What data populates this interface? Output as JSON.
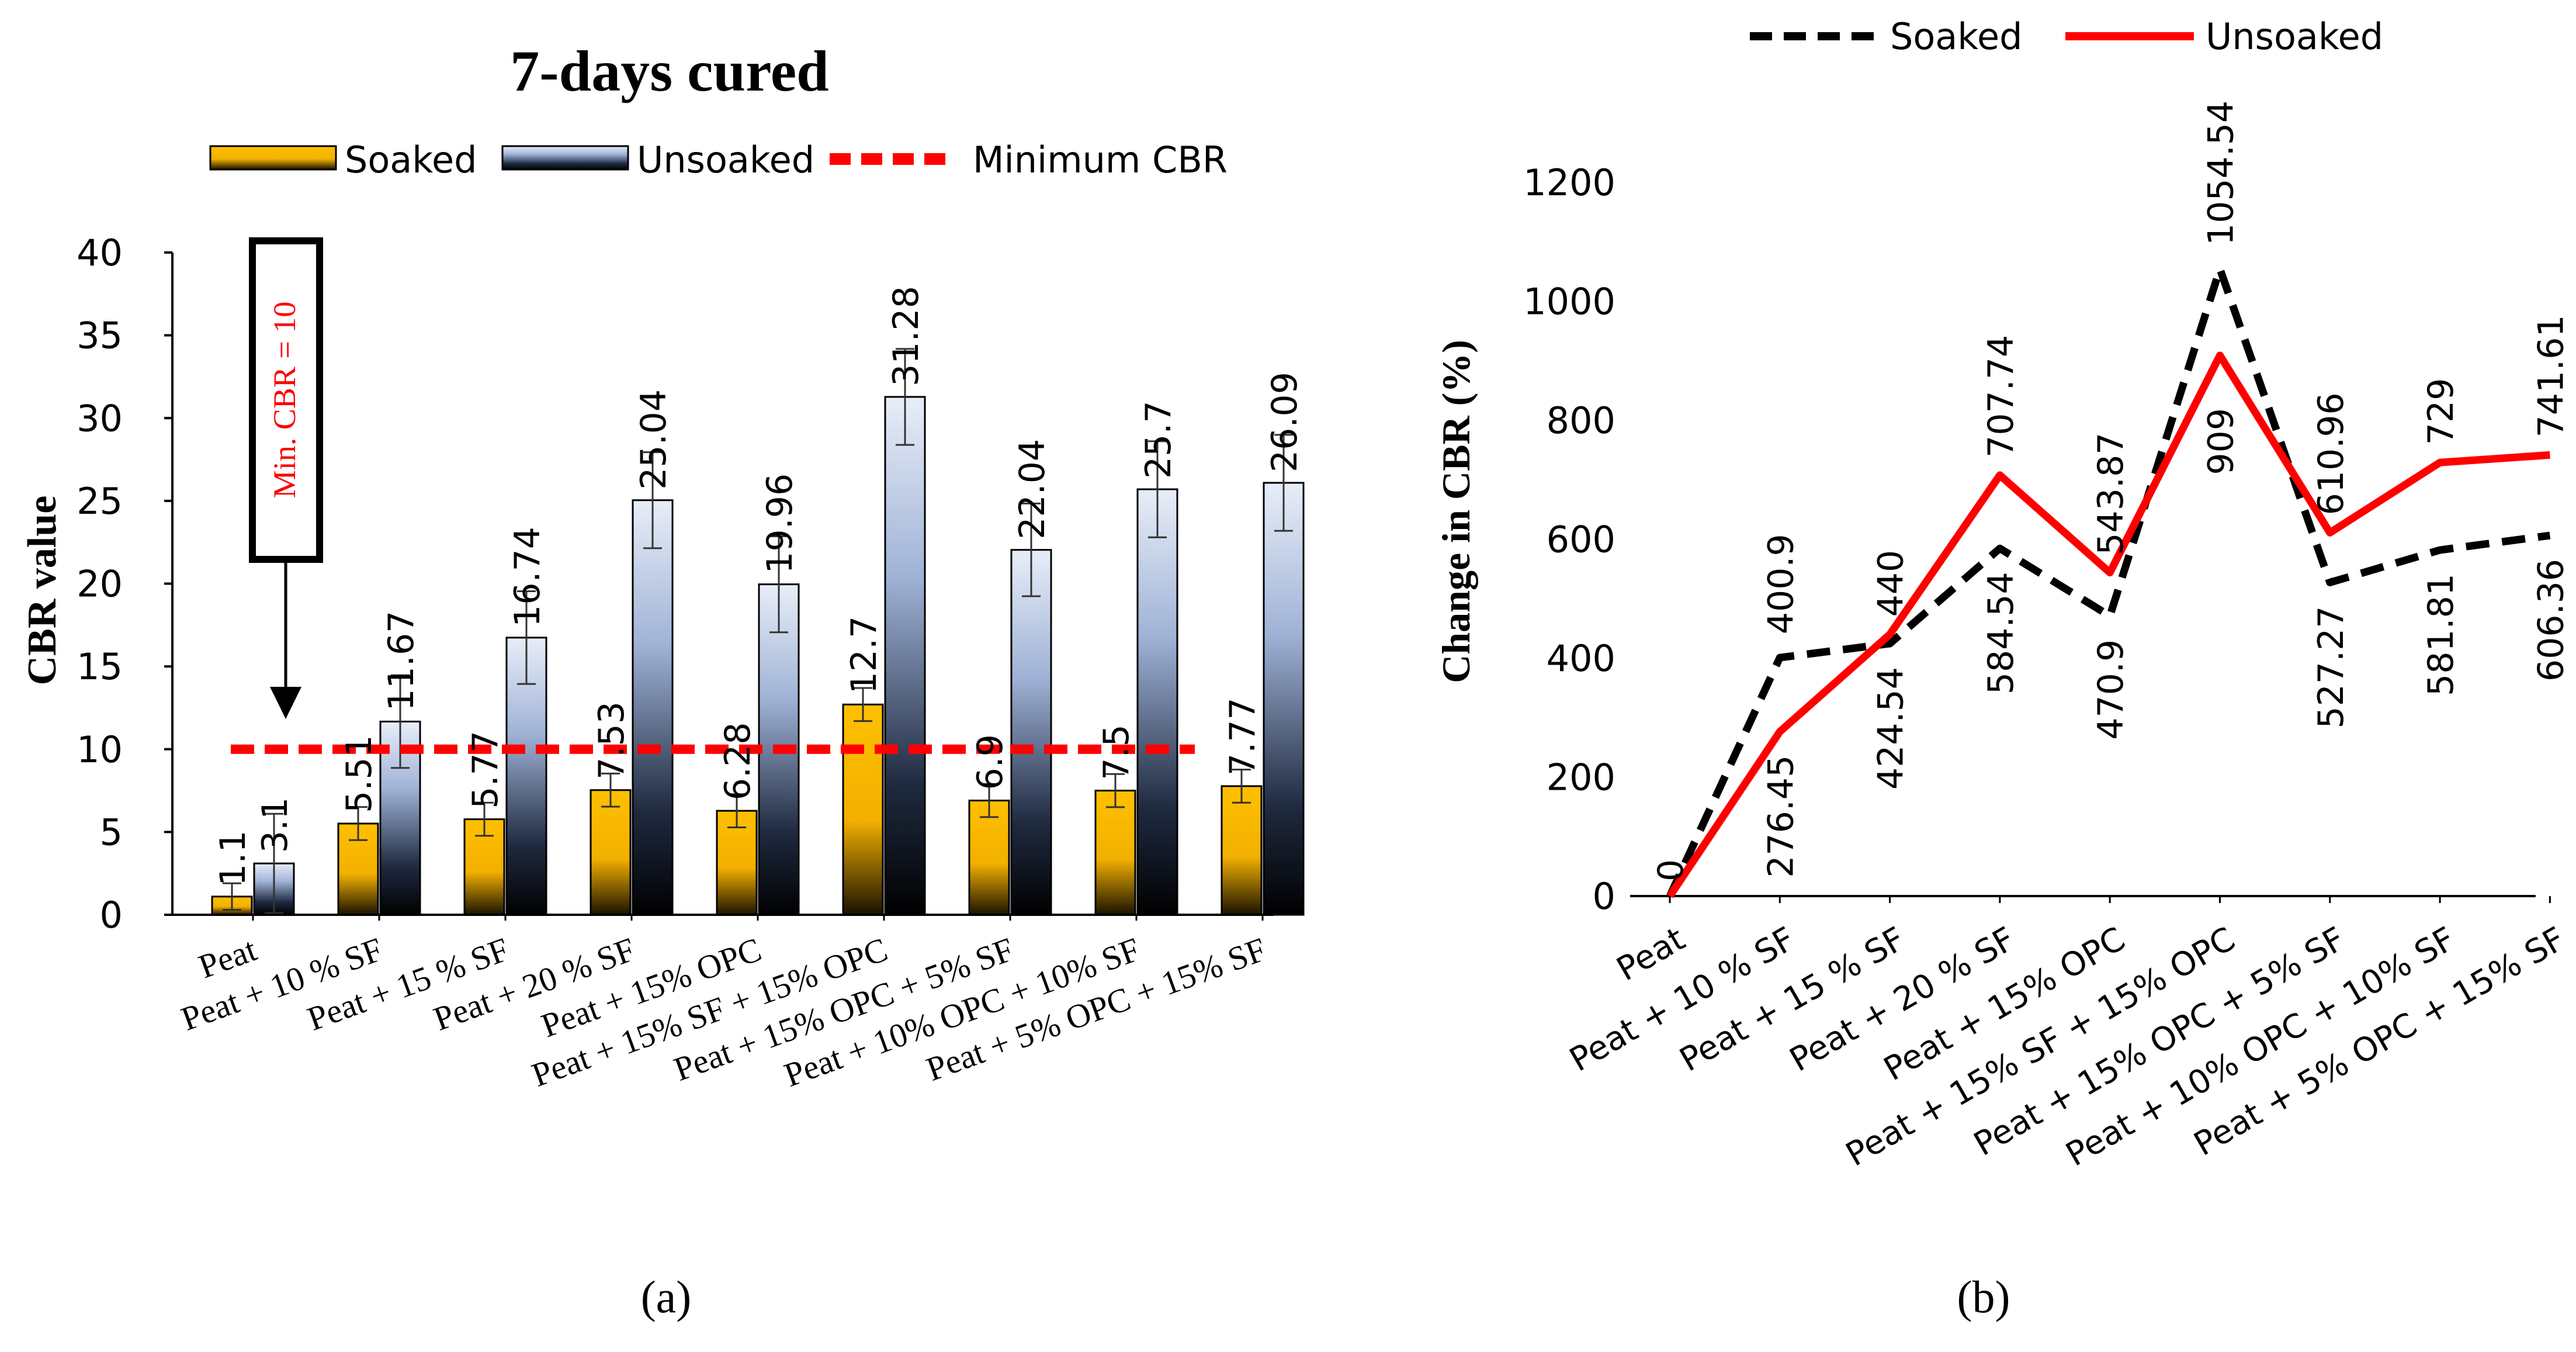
{
  "chart_data": [
    {
      "type": "bar",
      "title": "7-days cured",
      "xlabel": "",
      "ylabel": "CBR value",
      "ylim": [
        0,
        40
      ],
      "yticks": [
        "0",
        "5",
        "10",
        "15",
        "20",
        "25",
        "30",
        "35",
        "40"
      ],
      "categories": [
        "Peat",
        "Peat + 10 % SF",
        "Peat + 15 % SF",
        "Peat + 20 % SF",
        "Peat + 15% OPC",
        "Peat + 15% SF + 15% OPC",
        "Peat + 15% OPC + 5% SF",
        "Peat + 10% OPC + 10% SF",
        "Peat + 5% OPC + 15% SF"
      ],
      "series": [
        {
          "name": "Soaked",
          "values": [
            1.1,
            5.51,
            5.77,
            7.53,
            6.28,
            12.7,
            6.9,
            7.5,
            7.77
          ],
          "labels": [
            "1.1",
            "5.51",
            "5.77",
            "7.53",
            "6.28",
            "12.7",
            "6.9",
            "7.5",
            "7.77"
          ],
          "errors": [
            0.8,
            1.0,
            1.0,
            1.0,
            1.0,
            1.0,
            1.0,
            1.0,
            1.0
          ]
        },
        {
          "name": "Unsoaked",
          "values": [
            3.1,
            11.67,
            16.74,
            25.04,
            19.96,
            31.28,
            22.04,
            25.7,
            26.09
          ],
          "labels": [
            "3.1",
            "11.67",
            "16.74",
            "25.04",
            "19.96",
            "31.28",
            "22.04",
            "25.7",
            "26.09"
          ],
          "errors": [
            3.0,
            2.8,
            2.8,
            2.9,
            2.9,
            2.9,
            2.8,
            2.9,
            2.9
          ]
        }
      ],
      "reference_line": {
        "name": "Minimum CBR",
        "value": 10
      },
      "annotation": "Min. CBR = 10",
      "legend": [
        "Soaked",
        "Unsoaked",
        "Minimum CBR"
      ],
      "legend_position": "top",
      "caption": "(a)",
      "colors": {
        "soaked": "#f5b400",
        "unsoaked": "#aab9d9",
        "minimum": "#ff0000",
        "annotation": "#ff0000"
      },
      "grid": false
    },
    {
      "type": "line",
      "xlabel": "",
      "ylabel": "Change in CBR (%)",
      "ylim": [
        0,
        1200
      ],
      "yticks": [
        "0",
        "200",
        "400",
        "600",
        "800",
        "1000",
        "1200"
      ],
      "categories": [
        "Peat",
        "Peat + 10 % SF",
        "Peat + 15 % SF",
        "Peat + 20 % SF",
        "Peat + 15% OPC",
        "Peat + 15% SF + 15% OPC",
        "Peat + 15% OPC + 5% SF",
        "Peat + 10% OPC + 10% SF",
        "Peat + 5% OPC + 15% SF"
      ],
      "series": [
        {
          "name": "Soaked",
          "style": "dashed",
          "values": [
            0,
            400.9,
            424.54,
            584.54,
            470.9,
            1054.54,
            527.27,
            581.81,
            606.36
          ],
          "labels": [
            "0",
            "400.9",
            "424.54",
            "584.54",
            "470.9",
            "1054.54",
            "527.27",
            "581.81",
            "606.36"
          ]
        },
        {
          "name": "Unsoaked",
          "style": "solid",
          "values": [
            0,
            276.45,
            440,
            707.74,
            543.87,
            909,
            610.96,
            729,
            741.61
          ],
          "labels": [
            "",
            "276.45",
            "440",
            "707.74",
            "543.87",
            "909",
            "610.96",
            "729",
            "741.61"
          ]
        }
      ],
      "legend": [
        "Soaked",
        "Unsoaked"
      ],
      "legend_position": "top",
      "caption": "(b)",
      "colors": {
        "soaked": "#000000",
        "unsoaked": "#ff0000"
      },
      "grid": false
    }
  ]
}
